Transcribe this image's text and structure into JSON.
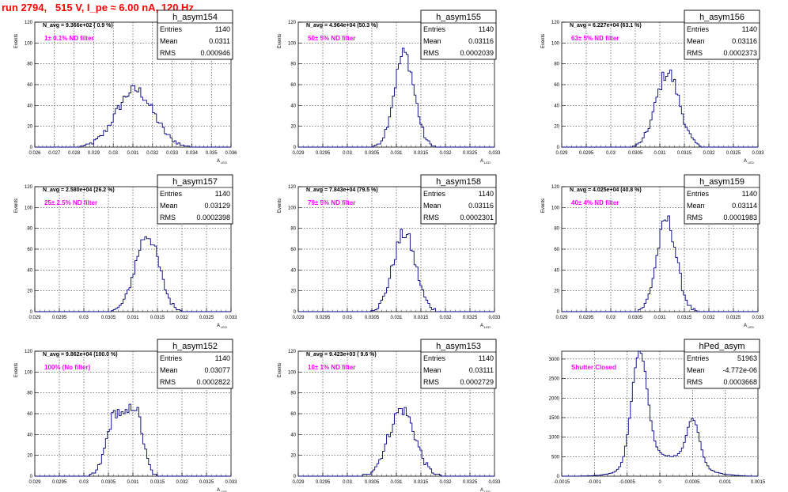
{
  "page_title": "run 2794,   515 V, I_pe ≈ 6.00 nA, 120 Hz",
  "colors": {
    "hist_line": "#000080",
    "annotation": "#ff00ff",
    "title": "#ff0000",
    "grid": "#000000"
  },
  "chart_data": [
    {
      "type": "histogram",
      "name": "h_asym154",
      "stats": {
        "entries": "1140",
        "mean": "0.0311",
        "rms": "0.000946"
      },
      "navg": "N_avg = 9.366e+02 ( 0.9 %)",
      "filter": "1± 0.1% ND filter",
      "xlim": [
        0.026,
        0.036
      ],
      "ylim": [
        0,
        120
      ],
      "xticks": [
        "0.026",
        "0.027",
        "0.028",
        "0.029",
        "0.03",
        "0.031",
        "0.032",
        "0.033",
        "0.034",
        "0.035",
        "0.036"
      ],
      "yticks": [
        "0",
        "20",
        "40",
        "60",
        "80",
        "100",
        "120"
      ],
      "xlabel": "A",
      "xsub": "LED",
      "ylabel": "Events",
      "shape": [
        {
          "mu": 0.0311,
          "sigma": 0.00095,
          "peak": 55
        }
      ]
    },
    {
      "type": "histogram",
      "name": "h_asym155",
      "stats": {
        "entries": "1140",
        "mean": "0.03116",
        "rms": "0.0002039"
      },
      "navg": "N_avg = 4.964e+04 (50.3 %)",
      "filter": "50± 5% ND filter",
      "xlim": [
        0.029,
        0.033
      ],
      "ylim": [
        0,
        120
      ],
      "xticks": [
        "0.029",
        "0.0295",
        "0.03",
        "0.0305",
        "0.031",
        "0.0315",
        "0.032",
        "0.0325",
        "0.033"
      ],
      "yticks": [
        "0",
        "20",
        "40",
        "60",
        "80",
        "100",
        "120"
      ],
      "xlabel": "A",
      "xsub": "LED",
      "ylabel": "Events",
      "shape": [
        {
          "mu": 0.03116,
          "sigma": 0.000204,
          "peak": 90
        }
      ]
    },
    {
      "type": "histogram",
      "name": "h_asym156",
      "stats": {
        "entries": "1140",
        "mean": "0.03116",
        "rms": "0.0002373"
      },
      "navg": "N_avg = 6.227e+04 (63.1 %)",
      "filter": "63± 5% ND filter",
      "xlim": [
        0.029,
        0.033
      ],
      "ylim": [
        0,
        120
      ],
      "xticks": [
        "0.029",
        "0.0295",
        "0.03",
        "0.0305",
        "0.031",
        "0.0315",
        "0.032",
        "0.0325",
        "0.033"
      ],
      "yticks": [
        "0",
        "20",
        "40",
        "60",
        "80",
        "100",
        "120"
      ],
      "xlabel": "A",
      "xsub": "LED",
      "ylabel": "Events",
      "shape": [
        {
          "mu": 0.03116,
          "sigma": 0.000237,
          "peak": 72
        }
      ]
    },
    {
      "type": "histogram",
      "name": "h_asym157",
      "stats": {
        "entries": "1140",
        "mean": "0.03129",
        "rms": "0.0002398"
      },
      "navg": "N_avg = 2.580e+04 (26.2 %)",
      "filter": "25± 2.5% ND filter",
      "xlim": [
        0.029,
        0.033
      ],
      "ylim": [
        0,
        120
      ],
      "xticks": [
        "0.029",
        "0.0295",
        "0.03",
        "0.0305",
        "0.031",
        "0.0315",
        "0.032",
        "0.0325",
        "0.033"
      ],
      "yticks": [
        "0",
        "20",
        "40",
        "60",
        "80",
        "100",
        "120"
      ],
      "xlabel": "A",
      "xsub": "LED",
      "ylabel": "Events",
      "shape": [
        {
          "mu": 0.03129,
          "sigma": 0.00024,
          "peak": 74
        }
      ]
    },
    {
      "type": "histogram",
      "name": "h_asym158",
      "stats": {
        "entries": "1140",
        "mean": "0.03116",
        "rms": "0.0002301"
      },
      "navg": "N_avg = 7.843e+04 (79.5 %)",
      "filter": "79± 5% ND filter",
      "xlim": [
        0.029,
        0.033
      ],
      "ylim": [
        0,
        120
      ],
      "xticks": [
        "0.029",
        "0.0295",
        "0.03",
        "0.0305",
        "0.031",
        "0.0315",
        "0.032",
        "0.0325",
        "0.033"
      ],
      "yticks": [
        "0",
        "20",
        "40",
        "60",
        "80",
        "100",
        "120"
      ],
      "xlabel": "A",
      "xsub": "LED",
      "ylabel": "Events",
      "shape": [
        {
          "mu": 0.03116,
          "sigma": 0.00023,
          "peak": 75
        }
      ]
    },
    {
      "type": "histogram",
      "name": "h_asym159",
      "stats": {
        "entries": "1140",
        "mean": "0.03114",
        "rms": "0.0001983"
      },
      "navg": "N_avg = 4.025e+04 (40.8 %)",
      "filter": "40± 4% ND filter",
      "xlim": [
        0.029,
        0.033
      ],
      "ylim": [
        0,
        120
      ],
      "xticks": [
        "0.029",
        "0.0295",
        "0.03",
        "0.0305",
        "0.031",
        "0.0315",
        "0.032",
        "0.0325",
        "0.033"
      ],
      "yticks": [
        "0",
        "20",
        "40",
        "60",
        "80",
        "100",
        "120"
      ],
      "xlabel": "A",
      "xsub": "LED",
      "ylabel": "Events",
      "shape": [
        {
          "mu": 0.03114,
          "sigma": 0.000198,
          "peak": 88
        }
      ]
    },
    {
      "type": "histogram",
      "name": "h_asym152",
      "stats": {
        "entries": "1140",
        "mean": "0.03077",
        "rms": "0.0002822"
      },
      "navg": "N_avg = 9.862e+04 (100.0 %)",
      "filter": "100% (No filter)",
      "xlim": [
        0.029,
        0.033
      ],
      "ylim": [
        0,
        120
      ],
      "xticks": [
        "0.029",
        "0.0295",
        "0.03",
        "0.0305",
        "0.031",
        "0.0315",
        "0.032",
        "0.0325",
        "0.033"
      ],
      "yticks": [
        "0",
        "20",
        "40",
        "60",
        "80",
        "100",
        "120"
      ],
      "xlabel": "A",
      "xsub": "LED",
      "ylabel": "Events",
      "shape": [
        {
          "mu": 0.03065,
          "sigma": 0.00018,
          "peak": 60
        },
        {
          "mu": 0.03105,
          "sigma": 0.00015,
          "peak": 62
        }
      ]
    },
    {
      "type": "histogram",
      "name": "h_asym153",
      "stats": {
        "entries": "1140",
        "mean": "0.03111",
        "rms": "0.0002729"
      },
      "navg": "N_avg = 9.423e+03 ( 9.6 %)",
      "filter": "10± 1% ND filter",
      "xlim": [
        0.029,
        0.033
      ],
      "ylim": [
        0,
        120
      ],
      "xticks": [
        "0.029",
        "0.0295",
        "0.03",
        "0.0305",
        "0.031",
        "0.0315",
        "0.032",
        "0.0325",
        "0.033"
      ],
      "yticks": [
        "0",
        "20",
        "40",
        "60",
        "80",
        "100",
        "120"
      ],
      "xlabel": "A",
      "xsub": "LED",
      "ylabel": "Events",
      "shape": [
        {
          "mu": 0.03111,
          "sigma": 0.00027,
          "peak": 64
        }
      ]
    },
    {
      "type": "histogram",
      "name": "hPed_asym",
      "stats": {
        "entries": "51963",
        "mean": "-4.772e-06",
        "rms": "0.0003668"
      },
      "navg": "",
      "filter": "Shutter Closed",
      "xlim": [
        -0.0015,
        0.0015
      ],
      "ylim": [
        0,
        3200
      ],
      "xticks": [
        "-0.0015",
        "-0.001",
        "-0.0005",
        "0",
        "0.0005",
        "0.001",
        "0.0015"
      ],
      "yticks": [
        "0",
        "500",
        "1000",
        "1500",
        "2000",
        "2500",
        "3000"
      ],
      "xlabel": "",
      "xsub": "",
      "ylabel": "",
      "shape": [
        {
          "mu": -0.00031,
          "sigma": 0.00012,
          "peak": 2900
        },
        {
          "mu": 0.00051,
          "sigma": 0.0001,
          "peak": 1150
        },
        {
          "mu": 0.0001,
          "sigma": 0.00042,
          "peak": 520
        }
      ]
    }
  ]
}
